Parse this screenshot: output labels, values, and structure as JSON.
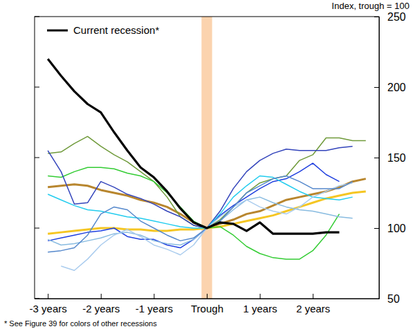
{
  "chart_data": {
    "type": "line",
    "y_label": "Index, trough = 100",
    "footnote": "* See Figure 39 for colors of other recessions",
    "legend": "upper left",
    "xlim": [
      -3.25,
      3.25
    ],
    "xticks": [
      {
        "value": -3,
        "label": "-3 years"
      },
      {
        "value": -2,
        "label": "-2 years"
      },
      {
        "value": -1,
        "label": "-1 years"
      },
      {
        "value": 0,
        "label": "Trough"
      },
      {
        "value": 1,
        "label": "1 years"
      },
      {
        "value": 2,
        "label": "2 years"
      }
    ],
    "ylim": [
      50,
      250
    ],
    "yticks": [
      50,
      100,
      150,
      200,
      250
    ],
    "bands": [
      {
        "x0": -0.1,
        "x1": 0.1,
        "color": "#fbd3ae"
      }
    ],
    "x": [
      -3,
      -2.75,
      -2.5,
      -2.25,
      -2,
      -1.75,
      -1.5,
      -1.25,
      -1,
      -0.75,
      -0.5,
      -0.25,
      0,
      0.25,
      0.5,
      0.75,
      1,
      1.25,
      1.5,
      1.75,
      2,
      2.25,
      2.5,
      2.75,
      3
    ],
    "series": [
      {
        "name": "Current recession*",
        "color": "#000000",
        "line_style": "bold",
        "values": [
          220,
          208,
          197,
          188,
          182,
          168,
          155,
          143,
          136,
          126,
          114,
          104,
          100,
          104,
          103,
          98,
          104,
          96,
          96,
          96,
          96,
          97,
          97,
          null,
          null
        ]
      },
      {
        "color": "#b8862e",
        "line_style": "bold",
        "values": [
          129,
          130,
          131,
          130,
          127,
          125,
          123,
          120,
          118,
          115,
          110,
          104,
          100,
          103,
          106,
          110,
          112,
          116,
          120,
          122,
          124,
          126,
          129,
          133,
          135
        ]
      },
      {
        "color": "#f5c623",
        "line_style": "bold",
        "values": [
          96,
          97,
          98,
          99,
          100,
          100,
          99,
          99,
          98,
          98,
          99,
          99,
          100,
          101,
          103,
          105,
          107,
          109,
          112,
          115,
          118,
          121,
          123,
          125,
          126
        ]
      },
      {
        "color": "#6f9a3a",
        "line_style": "solid",
        "values": [
          153,
          154,
          160,
          165,
          158,
          152,
          147,
          140,
          133,
          122,
          108,
          102,
          100,
          106,
          115,
          125,
          132,
          135,
          137,
          148,
          152,
          164,
          164,
          162,
          162
        ]
      },
      {
        "color": "#33cc33",
        "line_style": "solid",
        "values": [
          137,
          136,
          140,
          143,
          143,
          142,
          139,
          137,
          133,
          125,
          115,
          105,
          100,
          101,
          95,
          87,
          82,
          79,
          78,
          78,
          84,
          95,
          110,
          null,
          null
        ]
      },
      {
        "color": "#3344bb",
        "line_style": "solid",
        "values": [
          155,
          140,
          117,
          118,
          133,
          129,
          124,
          121,
          117,
          112,
          108,
          102,
          100,
          112,
          128,
          140,
          148,
          153,
          156,
          155,
          155,
          155,
          157,
          158,
          null
        ]
      },
      {
        "color": "#1f3fdf",
        "line_style": "solid",
        "values": [
          91,
          93,
          95,
          97,
          98,
          100,
          94,
          92,
          92,
          88,
          86,
          92,
          100,
          109,
          116,
          122,
          128,
          133,
          135,
          140,
          146,
          138,
          133,
          null,
          null
        ]
      },
      {
        "color": "#22ccee",
        "line_style": "solid",
        "values": [
          124,
          120,
          116,
          113,
          112,
          110,
          108,
          107,
          105,
          103,
          101,
          100,
          100,
          110,
          122,
          130,
          137,
          136,
          131,
          126,
          122,
          121,
          120,
          122,
          null
        ]
      },
      {
        "color": "#88bbe0",
        "line_style": "solid",
        "values": [
          92,
          88,
          89,
          91,
          93,
          96,
          97,
          95,
          91,
          89,
          88,
          92,
          100,
          105,
          113,
          120,
          122,
          118,
          115,
          113,
          112,
          110,
          108,
          107,
          null
        ]
      },
      {
        "color": "#aaccee",
        "line_style": "solid",
        "values": [
          null,
          73,
          70,
          78,
          88,
          95,
          99,
          94,
          88,
          85,
          81,
          88,
          100,
          108,
          115,
          120,
          115,
          112,
          110,
          115,
          122,
          126,
          130,
          132,
          null
        ]
      },
      {
        "color": "#5588cc",
        "line_style": "solid",
        "values": [
          83,
          84,
          86,
          95,
          110,
          115,
          113,
          105,
          100,
          95,
          91,
          93,
          100,
          105,
          115,
          125,
          130,
          135,
          137,
          133,
          128,
          128,
          128,
          133,
          null
        ]
      }
    ]
  }
}
